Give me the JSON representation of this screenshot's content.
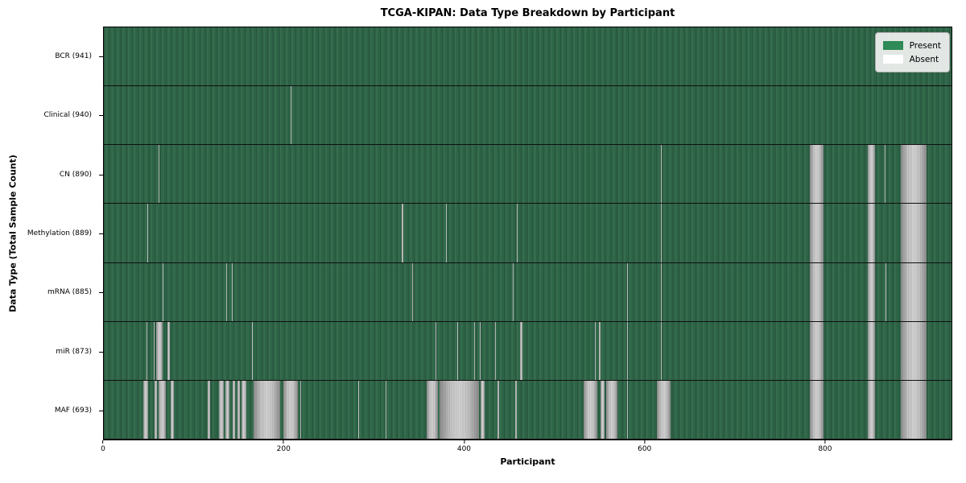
{
  "title": "TCGA-KIPAN: Data Type Breakdown by Participant",
  "legend": {
    "present_label": "Present",
    "absent_label": "Absent"
  },
  "chart_data": {
    "type": "heatmap",
    "title": "TCGA-KIPAN: Data Type Breakdown by Participant",
    "xlabel": "Participant",
    "ylabel": "Data Type (Total Sample Count)",
    "xlim": [
      0,
      941
    ],
    "xticks": [
      0,
      200,
      400,
      600,
      800
    ],
    "n_participants": 941,
    "grid": false,
    "legend_position": "upper right",
    "legend_entries": [
      {
        "label": "Present",
        "color": "#2e8b57"
      },
      {
        "label": "Absent",
        "color": "#ffffff"
      }
    ],
    "colors": {
      "present": "#2e8b57",
      "absent_rendered": "#c6c6c6",
      "row_divider": "#101010",
      "axes_border": "#000000",
      "legend_background": "#f2f2f2"
    },
    "rows": [
      {
        "data_type": "BCR",
        "count": 941,
        "label": "BCR (941)",
        "absent_ranges": []
      },
      {
        "data_type": "Clinical",
        "count": 940,
        "label": "Clinical (940)",
        "absent_ranges": [
          [
            207,
            208
          ]
        ]
      },
      {
        "data_type": "CN",
        "count": 890,
        "label": "CN (890)",
        "absent_ranges": [
          [
            61,
            62
          ],
          [
            618,
            619
          ],
          [
            784,
            799
          ],
          [
            848,
            856
          ],
          [
            867,
            868
          ],
          [
            885,
            913
          ]
        ]
      },
      {
        "data_type": "Methylation",
        "count": 889,
        "label": "Methylation (889)",
        "absent_ranges": [
          [
            48,
            49
          ],
          [
            331,
            332
          ],
          [
            380,
            381
          ],
          [
            458,
            459
          ],
          [
            618,
            619
          ],
          [
            784,
            799
          ],
          [
            848,
            856
          ],
          [
            885,
            913
          ]
        ]
      },
      {
        "data_type": "mRNA",
        "count": 885,
        "label": "mRNA (885)",
        "absent_ranges": [
          [
            65,
            66
          ],
          [
            136,
            137
          ],
          [
            142,
            143
          ],
          [
            342,
            343
          ],
          [
            454,
            455
          ],
          [
            581,
            582
          ],
          [
            618,
            619
          ],
          [
            784,
            799
          ],
          [
            848,
            856
          ],
          [
            868,
            869
          ],
          [
            885,
            913
          ]
        ]
      },
      {
        "data_type": "miR",
        "count": 873,
        "label": "miR (873)",
        "absent_ranges": [
          [
            47,
            48
          ],
          [
            55,
            56
          ],
          [
            58,
            65
          ],
          [
            71,
            73
          ],
          [
            164,
            165
          ],
          [
            368,
            369
          ],
          [
            392,
            393
          ],
          [
            411,
            412
          ],
          [
            417,
            418
          ],
          [
            434,
            435
          ],
          [
            462,
            465
          ],
          [
            545,
            546
          ],
          [
            550,
            551
          ],
          [
            581,
            582
          ],
          [
            618,
            619
          ],
          [
            784,
            799
          ],
          [
            848,
            856
          ],
          [
            885,
            913
          ]
        ]
      },
      {
        "data_type": "MAF",
        "count": 693,
        "label": "MAF (693)",
        "absent_ranges": [
          [
            44,
            49
          ],
          [
            56,
            59
          ],
          [
            61,
            69
          ],
          [
            74,
            78
          ],
          [
            115,
            118
          ],
          [
            128,
            133
          ],
          [
            135,
            139
          ],
          [
            143,
            146
          ],
          [
            148,
            151
          ],
          [
            153,
            158
          ],
          [
            166,
            196
          ],
          [
            199,
            215
          ],
          [
            218,
            219
          ],
          [
            282,
            283
          ],
          [
            313,
            314
          ],
          [
            358,
            371
          ],
          [
            373,
            416
          ],
          [
            418,
            423
          ],
          [
            437,
            439
          ],
          [
            457,
            458
          ],
          [
            533,
            548
          ],
          [
            551,
            556
          ],
          [
            558,
            570
          ],
          [
            581,
            582
          ],
          [
            614,
            629
          ],
          [
            784,
            799
          ],
          [
            848,
            856
          ],
          [
            885,
            913
          ]
        ]
      }
    ]
  }
}
